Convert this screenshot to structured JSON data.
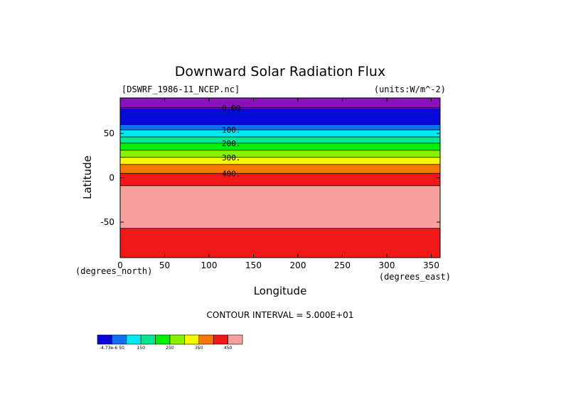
{
  "chart_data": {
    "type": "heatmap",
    "title": "Downward Solar Radiation Flux",
    "subtitle_left": "[DSWRF_1986-11_NCEP.nc]",
    "subtitle_right": "(units:W/m^-2)",
    "xlabel": "Longitude",
    "ylabel": "Latitude",
    "x_unit_label": "(degrees_east)",
    "y_unit_label": "(degrees_north)",
    "xlim": [
      0,
      360
    ],
    "ylim": [
      -90,
      90
    ],
    "x_ticks": [
      0,
      50,
      100,
      150,
      200,
      250,
      300,
      350
    ],
    "y_ticks": [
      -50,
      0,
      50
    ],
    "contour_interval_text": "CONTOUR INTERVAL = 5.000E+01",
    "bands": [
      {
        "lat_min": 78,
        "lat_max": 90,
        "color": "#8a10b8"
      },
      {
        "lat_min": 60,
        "lat_max": 78,
        "color": "#0808d8"
      },
      {
        "lat_min": 54,
        "lat_max": 60,
        "color": "#1070f0"
      },
      {
        "lat_min": 46,
        "lat_max": 54,
        "color": "#00e8f0"
      },
      {
        "lat_min": 39,
        "lat_max": 46,
        "color": "#00e890"
      },
      {
        "lat_min": 31,
        "lat_max": 39,
        "color": "#00f000"
      },
      {
        "lat_min": 23,
        "lat_max": 31,
        "color": "#88f000"
      },
      {
        "lat_min": 15,
        "lat_max": 23,
        "color": "#f8f800"
      },
      {
        "lat_min": 5,
        "lat_max": 15,
        "color": "#f87800"
      },
      {
        "lat_min": -9,
        "lat_max": 5,
        "color": "#f01818"
      },
      {
        "lat_min": -57,
        "lat_max": -9,
        "color": "#f8a0a0"
      },
      {
        "lat_min": -90,
        "lat_max": -57,
        "color": "#f01818"
      }
    ],
    "contours": [
      {
        "label": "0.00",
        "lat": 79
      },
      {
        "label": "100.",
        "lat": 54
      },
      {
        "label": "200.",
        "lat": 39
      },
      {
        "label": "300.",
        "lat": 23
      },
      {
        "label": "400.",
        "lat": 5
      }
    ],
    "extra_contours_lat": [
      60,
      46,
      31,
      15,
      -9,
      -57
    ],
    "colorbar": {
      "colors": [
        "#0808d8",
        "#1070f0",
        "#00e8f0",
        "#00e890",
        "#00f000",
        "#88f000",
        "#f8f800",
        "#f87800",
        "#f01818",
        "#f8a0a0"
      ],
      "labels": [
        {
          "text": "-4.73e-6 50",
          "after_box": 0
        },
        {
          "text": "150",
          "after_box": 2
        },
        {
          "text": "250",
          "after_box": 4
        },
        {
          "text": "350",
          "after_box": 6
        },
        {
          "text": "450",
          "after_box": 8
        }
      ]
    }
  }
}
